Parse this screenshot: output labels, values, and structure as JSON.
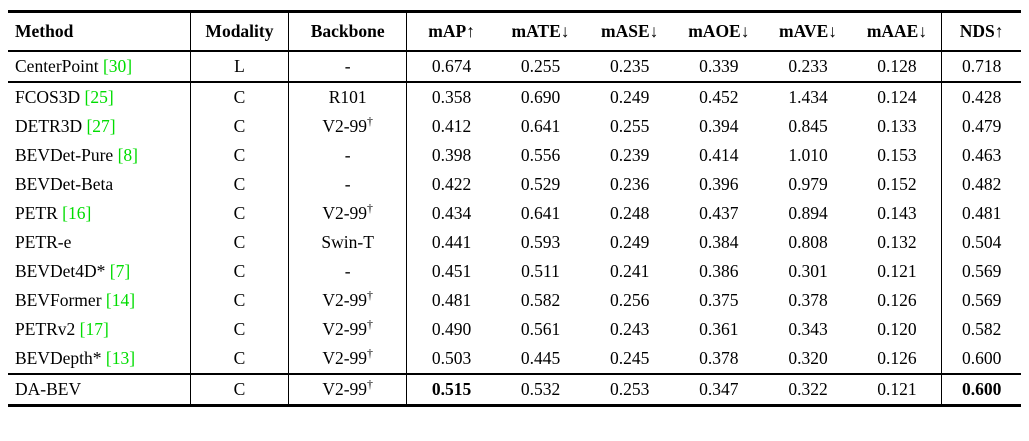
{
  "colors": {
    "citation_green": "#00DD00",
    "text": "#000000",
    "background": "#ffffff",
    "rule": "#000000"
  },
  "table": {
    "columns": [
      "Method",
      "Modality",
      "Backbone",
      "mAP↑",
      "mATE↓",
      "mASE↓",
      "mAOE↓",
      "mAVE↓",
      "mAAE↓",
      "NDS↑"
    ],
    "groups": [
      {
        "rows": [
          {
            "method": "CenterPoint",
            "cite": "30",
            "modality": "L",
            "backbone": "-",
            "values": [
              "0.674",
              "0.255",
              "0.235",
              "0.339",
              "0.233",
              "0.128",
              "0.718"
            ],
            "bold": []
          }
        ]
      },
      {
        "rows": [
          {
            "method": "FCOS3D",
            "cite": "25",
            "modality": "C",
            "backbone": "R101",
            "values": [
              "0.358",
              "0.690",
              "0.249",
              "0.452",
              "1.434",
              "0.124",
              "0.428"
            ],
            "bold": []
          },
          {
            "method": "DETR3D",
            "cite": "27",
            "modality": "C",
            "backbone": "V2-99",
            "backbone_sup": "†",
            "values": [
              "0.412",
              "0.641",
              "0.255",
              "0.394",
              "0.845",
              "0.133",
              "0.479"
            ],
            "bold": []
          },
          {
            "method": "BEVDet-Pure",
            "cite": "8",
            "modality": "C",
            "backbone": "-",
            "values": [
              "0.398",
              "0.556",
              "0.239",
              "0.414",
              "1.010",
              "0.153",
              "0.463"
            ],
            "bold": []
          },
          {
            "method": "BEVDet-Beta",
            "modality": "C",
            "backbone": "-",
            "values": [
              "0.422",
              "0.529",
              "0.236",
              "0.396",
              "0.979",
              "0.152",
              "0.482"
            ],
            "bold": []
          },
          {
            "method": "PETR",
            "cite": "16",
            "modality": "C",
            "backbone": "V2-99",
            "backbone_sup": "†",
            "values": [
              "0.434",
              "0.641",
              "0.248",
              "0.437",
              "0.894",
              "0.143",
              "0.481"
            ],
            "bold": []
          },
          {
            "method": "PETR-e",
            "modality": "C",
            "backbone": "Swin-T",
            "values": [
              "0.441",
              "0.593",
              "0.249",
              "0.384",
              "0.808",
              "0.132",
              "0.504"
            ],
            "bold": []
          },
          {
            "method": "BEVDet4D*",
            "cite": "7",
            "modality": "C",
            "backbone": "-",
            "values": [
              "0.451",
              "0.511",
              "0.241",
              "0.386",
              "0.301",
              "0.121",
              "0.569"
            ],
            "bold": []
          },
          {
            "method": "BEVFormer",
            "cite": "14",
            "modality": "C",
            "backbone": "V2-99",
            "backbone_sup": "†",
            "values": [
              "0.481",
              "0.582",
              "0.256",
              "0.375",
              "0.378",
              "0.126",
              "0.569"
            ],
            "bold": []
          },
          {
            "method": "PETRv2",
            "cite": "17",
            "modality": "C",
            "backbone": "V2-99",
            "backbone_sup": "†",
            "values": [
              "0.490",
              "0.561",
              "0.243",
              "0.361",
              "0.343",
              "0.120",
              "0.582"
            ],
            "bold": []
          },
          {
            "method": "BEVDepth*",
            "cite": "13",
            "modality": "C",
            "backbone": "V2-99",
            "backbone_sup": "†",
            "values": [
              "0.503",
              "0.445",
              "0.245",
              "0.378",
              "0.320",
              "0.126",
              "0.600"
            ],
            "bold": []
          }
        ]
      },
      {
        "rows": [
          {
            "method": "DA-BEV",
            "modality": "C",
            "backbone": "V2-99",
            "backbone_sup": "†",
            "values": [
              "0.515",
              "0.532",
              "0.253",
              "0.347",
              "0.322",
              "0.121",
              "0.600"
            ],
            "bold": [
              0,
              6
            ]
          }
        ]
      }
    ]
  }
}
